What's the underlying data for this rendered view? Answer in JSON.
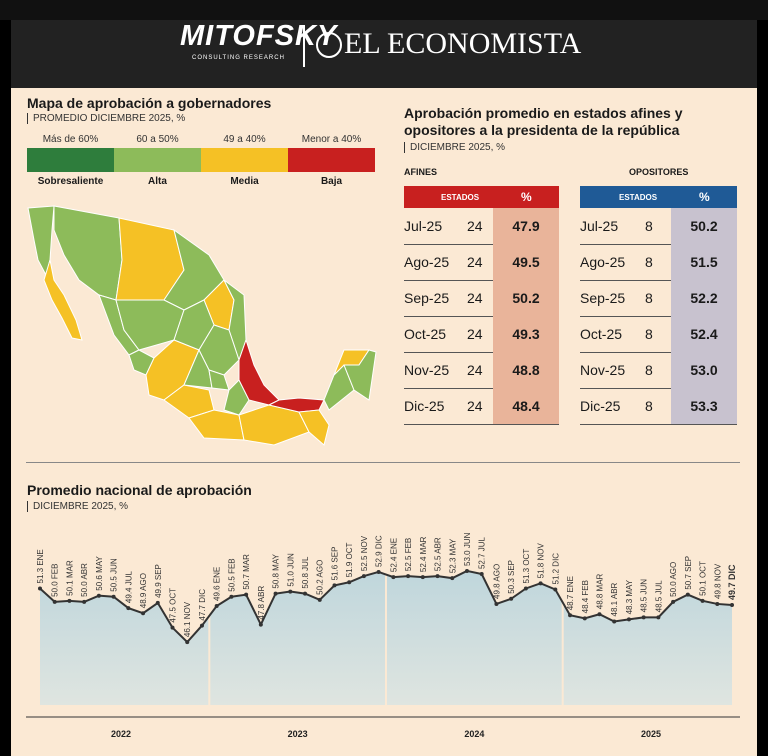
{
  "header": {
    "brand_left": "MITOFSKY",
    "brand_left_sub": "CONSULTING RESEARCH",
    "separator": "|",
    "brand_right": "EL ECONOMISTA"
  },
  "map": {
    "title": "Mapa de aprobación a gobernadores",
    "subtitle": "PROMEDIO DICIEMBRE 2025, %",
    "legend": [
      {
        "range": "Más de 60%",
        "label": "Sobresaliente",
        "color": "#2e7d3c"
      },
      {
        "range": "60 a 50%",
        "label": "Alta",
        "color": "#8dbb5a"
      },
      {
        "range": "49 a 40%",
        "label": "Media",
        "color": "#f5c125"
      },
      {
        "range": "Menor a 40%",
        "label": "Baja",
        "color": "#c8201f"
      }
    ]
  },
  "tables": {
    "title_line1": "Aprobación promedio en estados afines y",
    "title_line2": "opositores a la presidenta de la república",
    "subtitle": "DICIEMBRE 2025, %",
    "afines": {
      "label": "AFINES",
      "col_states": "ESTADOS",
      "col_pct": "%",
      "header_color": "#c8201f",
      "pct_bg": "#e9b49a",
      "rows": [
        {
          "month": "Jul-25",
          "states": "24",
          "pct": "47.9"
        },
        {
          "month": "Ago-25",
          "states": "24",
          "pct": "49.5"
        },
        {
          "month": "Sep-25",
          "states": "24",
          "pct": "50.2"
        },
        {
          "month": "Oct-25",
          "states": "24",
          "pct": "49.3"
        },
        {
          "month": "Nov-25",
          "states": "24",
          "pct": "48.8"
        },
        {
          "month": "Dic-25",
          "states": "24",
          "pct": "48.4"
        }
      ]
    },
    "opositores": {
      "label": "OPOSITORES",
      "col_states": "ESTADOS",
      "col_pct": "%",
      "header_color": "#1f5a96",
      "pct_bg": "#c8c2cf",
      "rows": [
        {
          "month": "Jul-25",
          "states": "8",
          "pct": "50.2"
        },
        {
          "month": "Ago-25",
          "states": "8",
          "pct": "51.5"
        },
        {
          "month": "Sep-25",
          "states": "8",
          "pct": "52.2"
        },
        {
          "month": "Oct-25",
          "states": "8",
          "pct": "52.4"
        },
        {
          "month": "Nov-25",
          "states": "8",
          "pct": "53.0"
        },
        {
          "month": "Dic-25",
          "states": "8",
          "pct": "53.3"
        }
      ]
    }
  },
  "chart_data": {
    "type": "area",
    "title": "Promedio nacional de aprobación",
    "subtitle": "DICIEMBRE 2025, %",
    "ylim": [
      40,
      56
    ],
    "years": [
      "2022",
      "2023",
      "2024",
      "2025"
    ],
    "points": [
      {
        "v": 51.3,
        "m": "ENE"
      },
      {
        "v": 50.0,
        "m": "FEB"
      },
      {
        "v": 50.1,
        "m": "MAR"
      },
      {
        "v": 50.0,
        "m": "ABR"
      },
      {
        "v": 50.6,
        "m": "MAY"
      },
      {
        "v": 50.5,
        "m": "JUN"
      },
      {
        "v": 49.4,
        "m": "JUL"
      },
      {
        "v": 48.9,
        "m": "AGO"
      },
      {
        "v": 49.9,
        "m": "SEP"
      },
      {
        "v": 47.5,
        "m": "OCT"
      },
      {
        "v": 46.1,
        "m": "NOV"
      },
      {
        "v": 47.7,
        "m": "DIC"
      },
      {
        "v": 49.6,
        "m": "ENE"
      },
      {
        "v": 50.5,
        "m": "FEB"
      },
      {
        "v": 50.7,
        "m": "MAR"
      },
      {
        "v": 47.8,
        "m": "ABR"
      },
      {
        "v": 50.8,
        "m": "MAY"
      },
      {
        "v": 51.0,
        "m": "JUN"
      },
      {
        "v": 50.8,
        "m": "JUL"
      },
      {
        "v": 50.2,
        "m": "AGO"
      },
      {
        "v": 51.6,
        "m": "SEP"
      },
      {
        "v": 51.9,
        "m": "OCT"
      },
      {
        "v": 52.5,
        "m": "NOV"
      },
      {
        "v": 52.9,
        "m": "DIC"
      },
      {
        "v": 52.4,
        "m": "ENE"
      },
      {
        "v": 52.5,
        "m": "FEB"
      },
      {
        "v": 52.4,
        "m": "MAR"
      },
      {
        "v": 52.5,
        "m": "ABR"
      },
      {
        "v": 52.3,
        "m": "MAY"
      },
      {
        "v": 53.0,
        "m": "JUN"
      },
      {
        "v": 52.7,
        "m": "JUL"
      },
      {
        "v": 49.8,
        "m": "AGO"
      },
      {
        "v": 50.3,
        "m": "SEP"
      },
      {
        "v": 51.3,
        "m": "OCT"
      },
      {
        "v": 51.8,
        "m": "NOV"
      },
      {
        "v": 51.2,
        "m": "DIC"
      },
      {
        "v": 48.7,
        "m": "ENE"
      },
      {
        "v": 48.4,
        "m": "FEB"
      },
      {
        "v": 48.8,
        "m": "MAR"
      },
      {
        "v": 48.1,
        "m": "ABR"
      },
      {
        "v": 48.3,
        "m": "MAY"
      },
      {
        "v": 48.5,
        "m": "JUN"
      },
      {
        "v": 48.5,
        "m": "JUL"
      },
      {
        "v": 50.0,
        "m": "AGO"
      },
      {
        "v": 50.7,
        "m": "SEP"
      },
      {
        "v": 50.1,
        "m": "OCT"
      },
      {
        "v": 49.8,
        "m": "NOV"
      },
      {
        "v": 49.7,
        "m": "DIC"
      }
    ]
  }
}
